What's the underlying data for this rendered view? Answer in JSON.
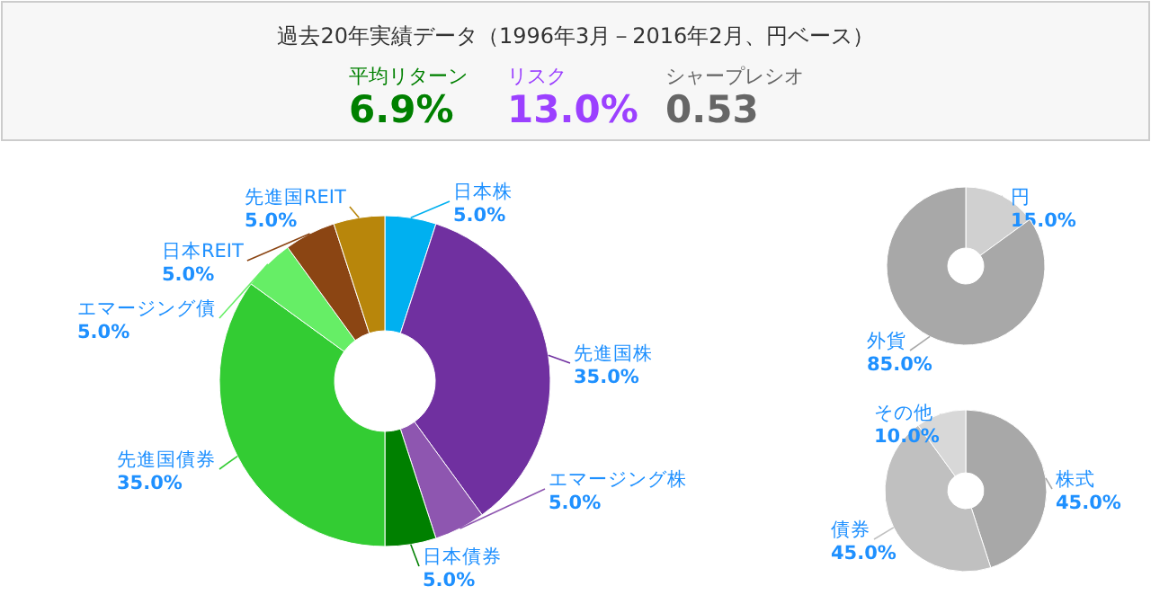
{
  "chart_data": [
    {
      "type": "other",
      "title": "過去20年実績データ（1996年3月－2016年2月、円ベース）",
      "annotations": [
        "平均リターン",
        "6.9%",
        "リスク",
        "13.0%",
        "シャープレシオ",
        "0.53"
      ]
    },
    {
      "type": "donut",
      "categories": [
        "日本株",
        "先進国株",
        "エマージング株",
        "日本債券",
        "先進国債券",
        "エマージング債",
        "日本REIT",
        "先進国REIT"
      ],
      "values": [
        5.0,
        35.0,
        5.0,
        5.0,
        35.0,
        5.0,
        5.0,
        5.0
      ],
      "colors": [
        "#00b0f0",
        "#7030a0",
        "#8e56b0",
        "#008000",
        "#33cc33",
        "#66ee66",
        "#8b4513",
        "#b8860b"
      ],
      "value_labels": [
        "5.0%",
        "35.0%",
        "5.0%",
        "5.0%",
        "35.0%",
        "5.0%",
        "5.0%",
        "5.0%"
      ]
    },
    {
      "type": "donut",
      "categories": [
        "円",
        "外貨"
      ],
      "values": [
        15.0,
        85.0
      ],
      "colors": [
        "#d0d0d0",
        "#a8a8a8"
      ],
      "value_labels": [
        "15.0%",
        "85.0%"
      ]
    },
    {
      "type": "donut",
      "categories": [
        "株式",
        "債券",
        "その他"
      ],
      "values": [
        45.0,
        45.0,
        10.0
      ],
      "colors": [
        "#a8a8a8",
        "#c0c0c0",
        "#d8d8d8"
      ],
      "value_labels": [
        "45.0%",
        "45.0%",
        "10.0%"
      ]
    }
  ]
}
